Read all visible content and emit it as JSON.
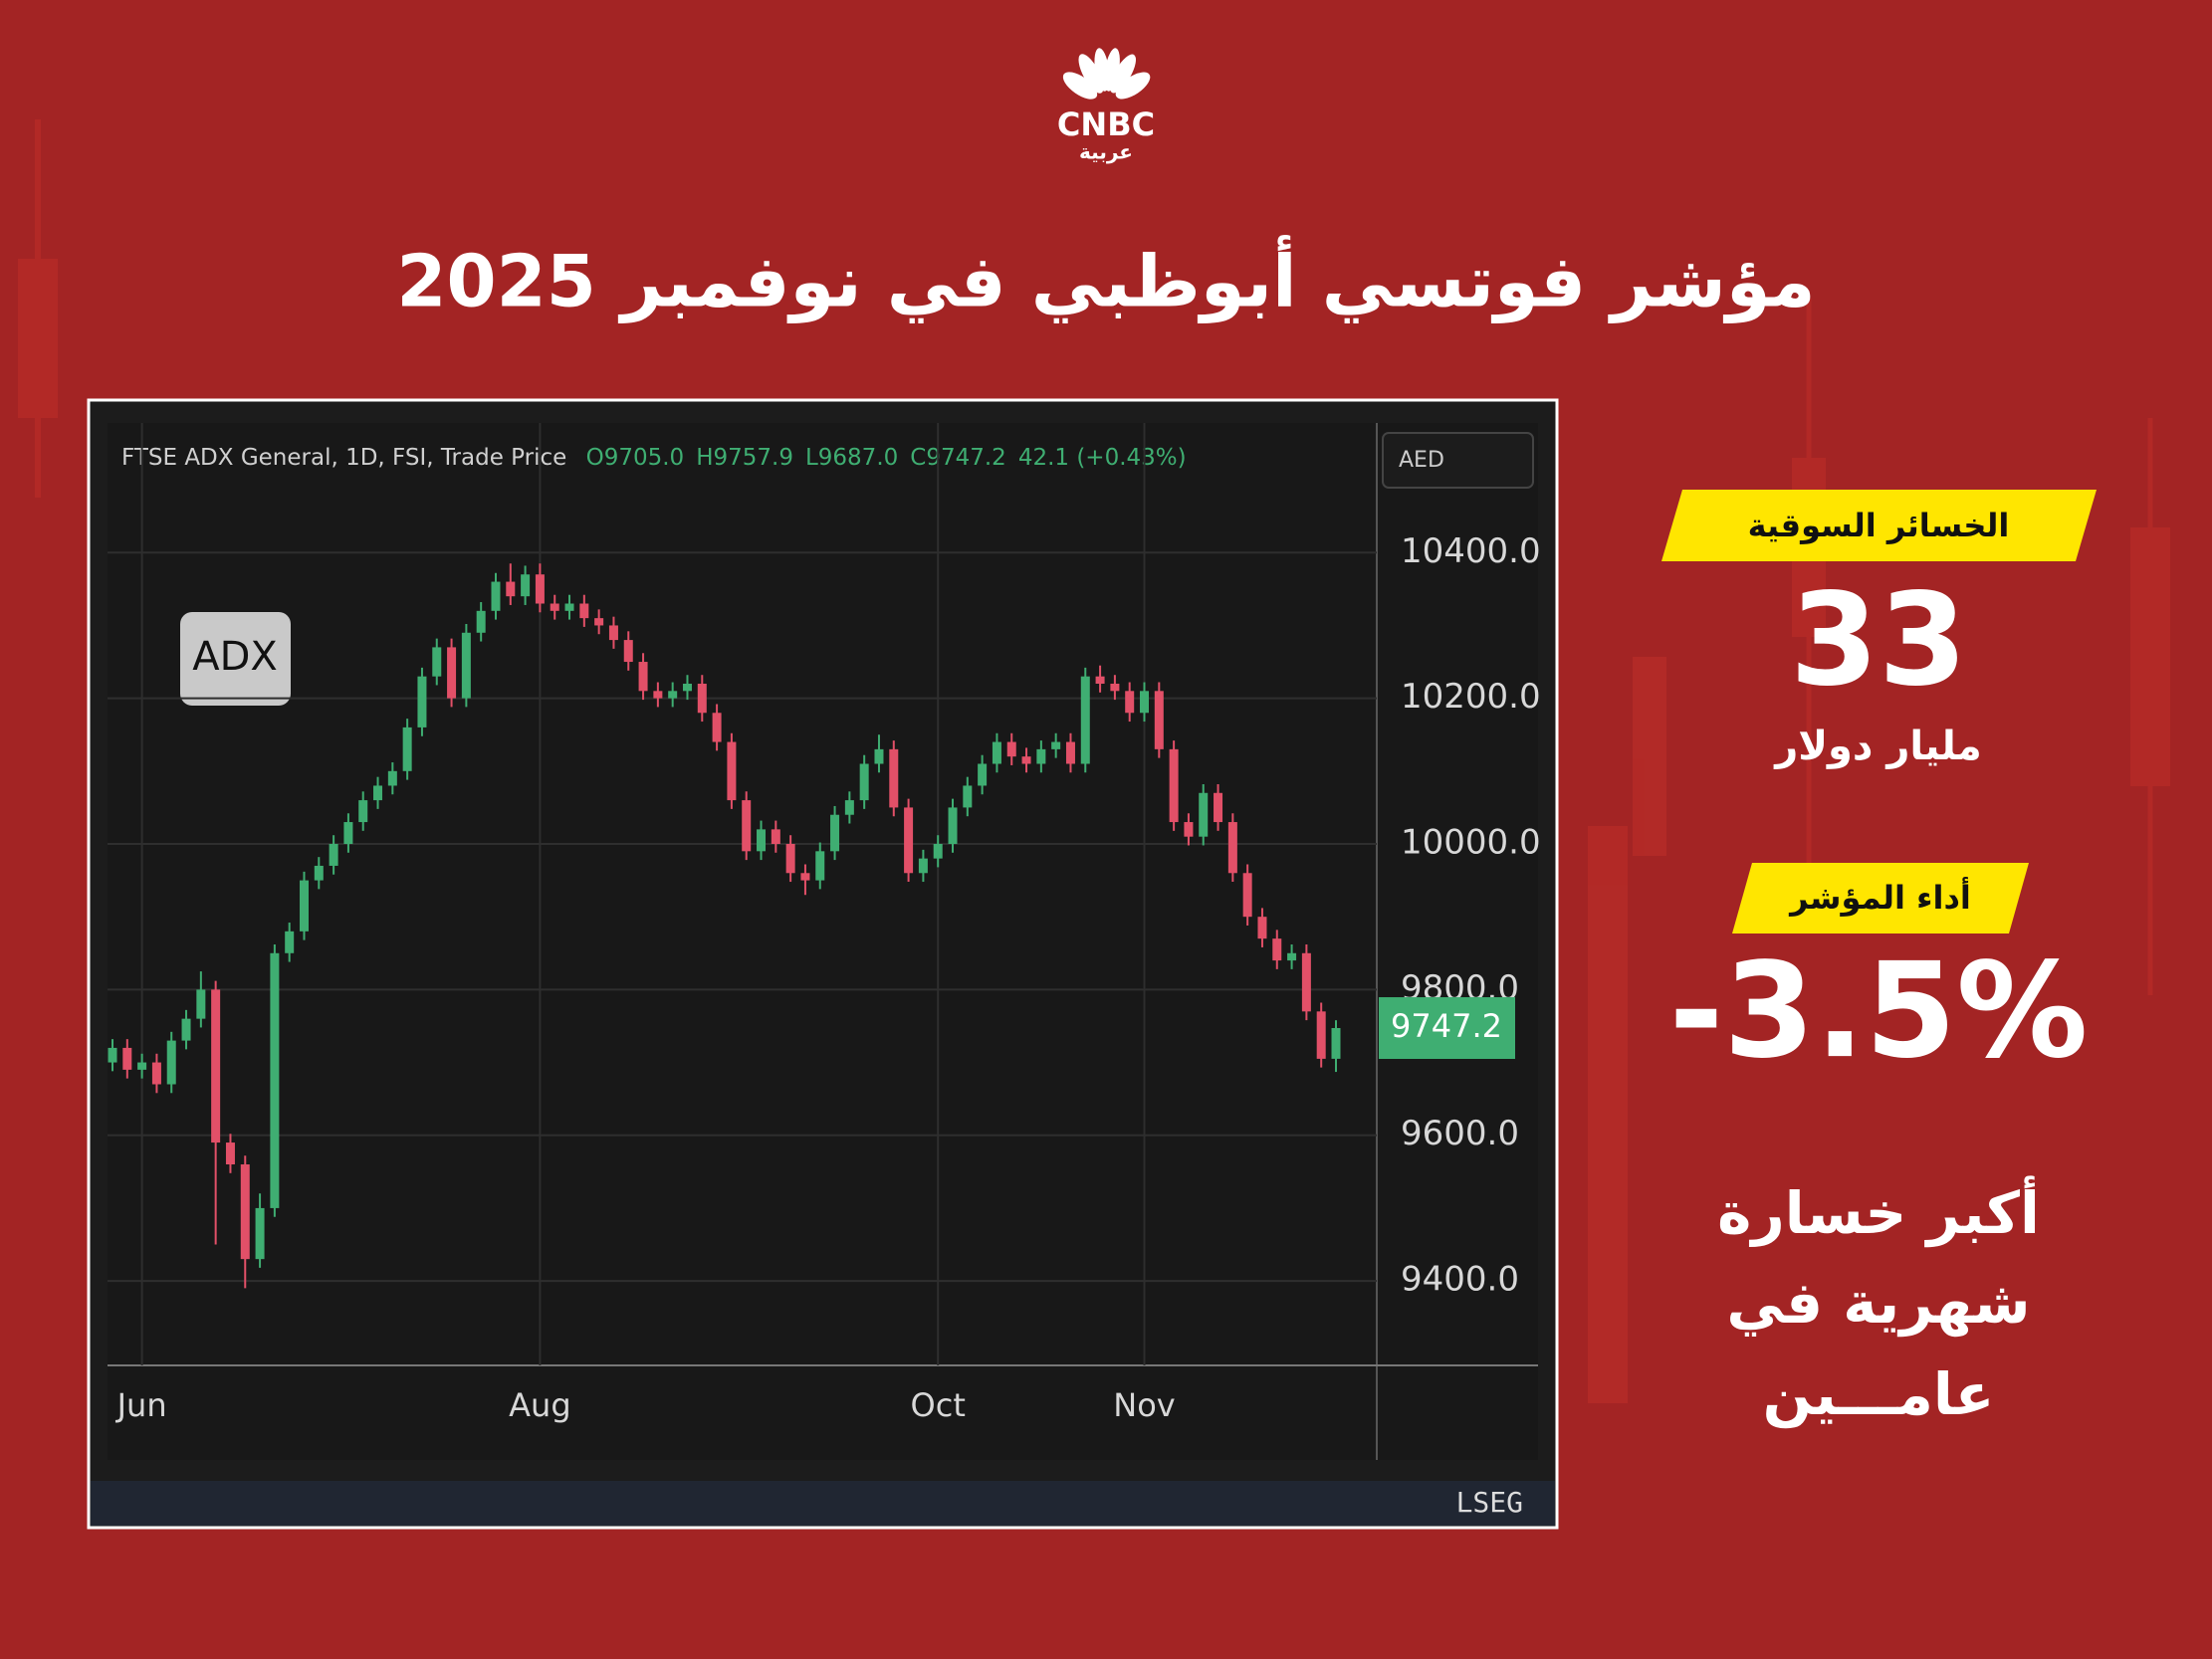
{
  "logo": {
    "brand": "CNBC",
    "sub": "عربية"
  },
  "title": "مؤشر فوتسي أبوظبي في نوفمبر 2025",
  "panel": {
    "badge1": "الخسائر السوقية",
    "value1": "33",
    "unit1": "مليار دولار",
    "badge2": "أداء المؤشر",
    "value2": "-3.5%",
    "note": [
      "أكبر خسارة",
      "شهرية في",
      "عامـــين"
    ]
  },
  "chart_data": {
    "type": "candlestick",
    "header": "FTSE ADX General, 1D, FSI, Trade Price",
    "header_values": [
      "O9705.0",
      "H9757.9",
      "L9687.0",
      "C9747.2",
      "42.1 (+0.43%)"
    ],
    "badge": "ADX",
    "currency": "AED",
    "source": "LSEG",
    "up_color": "#3fae72",
    "down_color": "#e25068",
    "categories": [
      null,
      null,
      "Jun",
      null,
      null,
      null,
      null,
      null,
      null,
      null,
      null,
      null,
      null,
      null,
      null,
      null,
      null,
      null,
      null,
      null,
      null,
      null,
      null,
      null,
      null,
      null,
      null,
      null,
      null,
      "Aug",
      null,
      null,
      null,
      null,
      null,
      null,
      null,
      null,
      null,
      null,
      null,
      null,
      null,
      null,
      null,
      null,
      null,
      null,
      null,
      null,
      null,
      null,
      null,
      null,
      null,
      null,
      "Oct",
      null,
      null,
      null,
      null,
      null,
      null,
      null,
      null,
      null,
      null,
      null,
      null,
      null,
      "Nov",
      null,
      null,
      null,
      null,
      null,
      null,
      null,
      null,
      null,
      null,
      null,
      null,
      null
    ],
    "open": [
      9700,
      9720,
      9690,
      9700,
      9670,
      9730,
      9760,
      9800,
      9590,
      9560,
      9430,
      9500,
      9850,
      9880,
      9950,
      9970,
      10000,
      10030,
      10060,
      10080,
      10100,
      10160,
      10230,
      10270,
      10200,
      10290,
      10320,
      10360,
      10340,
      10370,
      10330,
      10320,
      10330,
      10310,
      10300,
      10280,
      10250,
      10210,
      10200,
      10210,
      10220,
      10180,
      10140,
      10060,
      9990,
      10020,
      10000,
      9960,
      9950,
      9990,
      10040,
      10060,
      10110,
      10130,
      10050,
      9960,
      9980,
      10000,
      10050,
      10080,
      10110,
      10140,
      10120,
      10110,
      10130,
      10140,
      10110,
      10230,
      10220,
      10210,
      10180,
      10210,
      10130,
      10030,
      10010,
      10070,
      10030,
      9960,
      9900,
      9870,
      9840,
      9850,
      9770,
      9705.0
    ],
    "high": [
      9732,
      9732,
      9712,
      9712,
      9742,
      9772,
      9825,
      9812,
      9602,
      9572,
      9520,
      9862,
      9892,
      9962,
      9982,
      10012,
      10042,
      10072,
      10092,
      10112,
      10172,
      10242,
      10282,
      10282,
      10302,
      10332,
      10372,
      10385,
      10382,
      10385,
      10342,
      10342,
      10342,
      10322,
      10312,
      10292,
      10262,
      10222,
      10222,
      10232,
      10232,
      10192,
      10152,
      10072,
      10032,
      10032,
      10012,
      9972,
      10002,
      10052,
      10072,
      10122,
      10150,
      10142,
      10062,
      9992,
      10012,
      10062,
      10092,
      10122,
      10152,
      10152,
      10132,
      10142,
      10152,
      10152,
      10242,
      10245,
      10232,
      10222,
      10222,
      10222,
      10142,
      10042,
      10082,
      10082,
      10042,
      9972,
      9912,
      9882,
      9862,
      9862,
      9782,
      9757.9
    ],
    "low": [
      9688,
      9678,
      9678,
      9658,
      9658,
      9718,
      9748,
      9450,
      9548,
      9390,
      9418,
      9488,
      9838,
      9868,
      9938,
      9958,
      9988,
      10018,
      10048,
      10068,
      10088,
      10148,
      10218,
      10188,
      10188,
      10278,
      10308,
      10328,
      10328,
      10318,
      10308,
      10308,
      10298,
      10288,
      10268,
      10238,
      10198,
      10188,
      10188,
      10198,
      10168,
      10128,
      10048,
      9978,
      9978,
      9988,
      9948,
      9930,
      9938,
      9978,
      10028,
      10048,
      10098,
      10038,
      9948,
      9948,
      9968,
      9988,
      10038,
      10068,
      10098,
      10108,
      10098,
      10098,
      10118,
      10098,
      10098,
      10208,
      10198,
      10168,
      10168,
      10118,
      10018,
      9998,
      9998,
      10018,
      9948,
      9888,
      9858,
      9828,
      9828,
      9758,
      9693,
      9687.0
    ],
    "close": [
      9720,
      9690,
      9700,
      9670,
      9730,
      9760,
      9800,
      9590,
      9560,
      9430,
      9500,
      9850,
      9880,
      9950,
      9970,
      10000,
      10030,
      10060,
      10080,
      10100,
      10160,
      10230,
      10270,
      10200,
      10290,
      10320,
      10360,
      10340,
      10370,
      10330,
      10320,
      10330,
      10310,
      10300,
      10280,
      10250,
      10210,
      10200,
      10210,
      10220,
      10180,
      10140,
      10060,
      9990,
      10020,
      10000,
      9960,
      9950,
      9990,
      10040,
      10060,
      10110,
      10130,
      10050,
      9960,
      9980,
      10000,
      10050,
      10080,
      10110,
      10140,
      10120,
      10110,
      10130,
      10140,
      10110,
      10230,
      10220,
      10210,
      10180,
      10210,
      10130,
      10030,
      10010,
      10070,
      10030,
      9960,
      9900,
      9870,
      9840,
      9850,
      9770,
      9705,
      9747.2
    ],
    "price_tag": 9747.2,
    "ylim": [
      9284,
      10578
    ],
    "yticks": [
      {
        "value": 9400,
        "label": "9400.0"
      },
      {
        "value": 9600,
        "label": "9600.0"
      },
      {
        "value": 9800,
        "label": "9800.0"
      },
      {
        "value": 10000,
        "label": "10000.0"
      },
      {
        "value": 10200,
        "label": "10200.0"
      },
      {
        "value": 10400,
        "label": "10400.0"
      }
    ],
    "grid": true
  }
}
